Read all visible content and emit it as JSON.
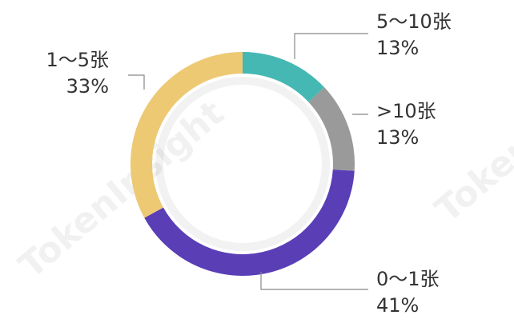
{
  "chart_data": {
    "type": "donut",
    "categories": [
      "5～10张",
      ">10张",
      "0～1张",
      "1～5张"
    ],
    "values": [
      13,
      13,
      41,
      33
    ],
    "value_labels": [
      "13%",
      "13%",
      "41%",
      "33%"
    ],
    "colors": [
      "#45b8b3",
      "#9a9a9a",
      "#5a3eb6",
      "#eec973"
    ],
    "watermark": "TokenInsight"
  }
}
